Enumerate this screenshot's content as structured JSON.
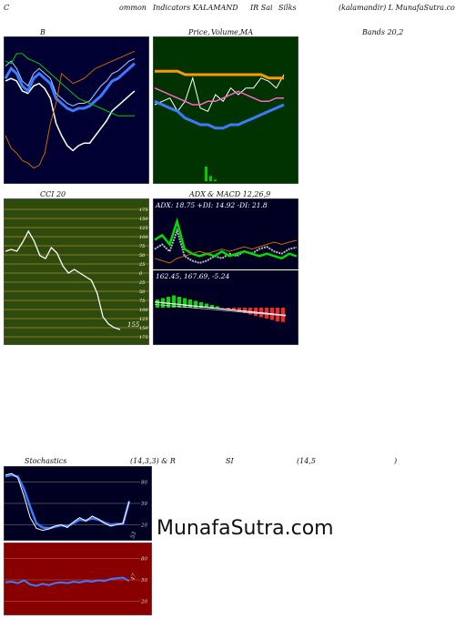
{
  "header": {
    "c": "C",
    "ommon": "ommon",
    "indicators": "Indicators KALAMAND",
    "ir": "IR Sai",
    "silks": "Silks",
    "site": "(kalamandir) L MunafaSutra.com"
  },
  "labels": {
    "b": "B",
    "price": "Price,",
    "volume": "Volume,",
    "ma": "MA",
    "bands": "Bands 20,2",
    "cci": "CCI 20",
    "adx": "ADX",
    "macd": "& MACD 12,26,9",
    "stoch": "Stochastics",
    "stoch_params": "(14,3,3) & R",
    "si": "SI",
    "rsi_params": "(14,5",
    "rsi_close": ")"
  },
  "adx_text": "ADX: 18.75 +DI: 14.92 -DI: 21.8",
  "macd_text": "162.45, 167.69, -5.24",
  "cci_value": "155",
  "stoch_value": "53",
  "rsi_value": "47",
  "cci_ticks": [
    "175",
    "150",
    "125",
    "100",
    "75",
    "50",
    "25",
    "0",
    "25",
    "50",
    "75",
    "100",
    "125",
    "150",
    "175"
  ],
  "stoch_ticks": [
    "80",
    "50",
    "20"
  ],
  "rsi_ticks": [
    "80",
    "50",
    "20"
  ],
  "watermark": "MunafaSutra.com",
  "colors": {
    "bb_bg": "#000033",
    "pv_bg": "#003300",
    "cci_bg": "#2d4a0f",
    "adx_bg": "#000022",
    "stoch_bg": "#000022",
    "rsi_bg": "#880000",
    "green": "#00cc00",
    "blue": "#3b7bff",
    "orange": "#ff9900"
  },
  "chart_data": [
    {
      "type": "line",
      "panel": "bollinger_bands",
      "series": [
        {
          "values": [
            207,
            208,
            207,
            203,
            202,
            205,
            206,
            204,
            200,
            190,
            185,
            181,
            179,
            181,
            182,
            182,
            185,
            188,
            191,
            195,
            197,
            199,
            201,
            203
          ]
        },
        {
          "values": [
            208,
            212,
            210,
            205,
            203,
            208,
            210,
            208,
            206,
            200,
            198,
            196,
            195,
            196,
            196,
            197,
            199,
            201,
            204,
            207,
            208,
            210,
            212,
            214
          ]
        },
        {
          "values": [
            213,
            215,
            212,
            207,
            205,
            210,
            212,
            210,
            208,
            202,
            200,
            198,
            197,
            198,
            198,
            199,
            202,
            205,
            207,
            210,
            211,
            213,
            215,
            216
          ]
        },
        {
          "values": [
            185,
            180,
            178,
            175,
            174,
            172,
            173,
            178,
            190,
            198,
            210,
            208,
            206,
            207,
            208,
            210,
            212,
            213,
            214,
            215,
            216,
            217,
            218,
            219
          ]
        },
        {
          "values": [
            215,
            214,
            218,
            218,
            216,
            215,
            214,
            212,
            210,
            208,
            206,
            204,
            202,
            200,
            199,
            198,
            197,
            196,
            195,
            194,
            193,
            193,
            193,
            193
          ]
        }
      ]
    },
    {
      "type": "line",
      "panel": "price_volume_ma",
      "series": [
        {
          "values": [
            195,
            196,
            197,
            193,
            196,
            203,
            194,
            193,
            198,
            196,
            200,
            198,
            200,
            200,
            203,
            202,
            200,
            204
          ]
        },
        {
          "values": [
            196,
            195,
            194,
            193,
            191,
            190,
            189,
            189,
            188,
            188,
            189,
            189,
            190,
            191,
            192,
            193,
            194,
            195
          ]
        },
        {
          "values": [
            200,
            199,
            198,
            197,
            196,
            195,
            195,
            196,
            196,
            197,
            198,
            199,
            198,
            197,
            196,
            196,
            197,
            197
          ]
        },
        {
          "values": [
            205,
            205,
            205,
            205,
            204,
            204,
            204,
            204,
            204,
            204,
            204,
            204,
            204,
            204,
            204,
            203,
            203,
            203
          ]
        }
      ],
      "volume": [
        0,
        0,
        0,
        0,
        0,
        0,
        0,
        0,
        0,
        0,
        0,
        1,
        0.35,
        0.1,
        0,
        0,
        0,
        0,
        0,
        0,
        0,
        0,
        0,
        0,
        0,
        0,
        0,
        0,
        0,
        0
      ]
    },
    {
      "type": "line",
      "panel": "cci",
      "ylim": [
        -175,
        175
      ],
      "series": [
        {
          "values": [
            60,
            65,
            60,
            85,
            115,
            88,
            48,
            40,
            70,
            55,
            20,
            0,
            10,
            0,
            -10,
            -20,
            -55,
            -120,
            -140,
            -150,
            -155
          ]
        }
      ]
    },
    {
      "type": "line",
      "panel": "adx",
      "series": [
        {
          "values": [
            18,
            20,
            17,
            26,
            15,
            13,
            12,
            13,
            15,
            14,
            16,
            15,
            17,
            16,
            18,
            19,
            17,
            16,
            18,
            18.75
          ]
        },
        {
          "values": [
            22,
            24,
            20,
            30,
            18,
            16,
            15,
            16,
            15,
            17,
            15,
            16,
            17,
            16,
            15,
            16,
            15,
            14,
            16,
            14.92
          ]
        },
        {
          "values": [
            14,
            13,
            12,
            14,
            15,
            16,
            17,
            16,
            17,
            18,
            17,
            18,
            19,
            18,
            19,
            20,
            21,
            20,
            21,
            21.8
          ]
        }
      ]
    },
    {
      "type": "bar",
      "panel": "macd_histogram",
      "values": [
        3,
        3.5,
        4,
        4.5,
        4,
        3.5,
        3,
        2.5,
        2,
        1.5,
        1,
        0.5,
        0,
        -0.5,
        -1,
        -1.5,
        -2,
        -2.5,
        -3,
        -3.5,
        -4,
        -4.5,
        -5,
        -5.24
      ]
    },
    {
      "type": "line",
      "panel": "stochastics",
      "ylim": [
        0,
        100
      ],
      "series": [
        {
          "values": [
            90,
            92,
            86,
            60,
            30,
            15,
            12,
            14,
            18,
            20,
            16,
            24,
            30,
            25,
            32,
            28,
            22,
            18,
            20,
            22,
            53
          ]
        },
        {
          "values": [
            88,
            90,
            88,
            70,
            45,
            22,
            16,
            15,
            17,
            19,
            18,
            22,
            27,
            26,
            29,
            27,
            23,
            20,
            21,
            21,
            53
          ]
        }
      ]
    },
    {
      "type": "line",
      "panel": "rsi",
      "ylim": [
        0,
        100
      ],
      "series": [
        {
          "values": [
            45,
            46,
            44,
            48,
            42,
            40,
            43,
            41,
            44,
            45,
            44,
            46,
            45,
            47,
            46,
            48,
            47,
            50,
            51,
            52,
            47
          ]
        }
      ]
    }
  ]
}
